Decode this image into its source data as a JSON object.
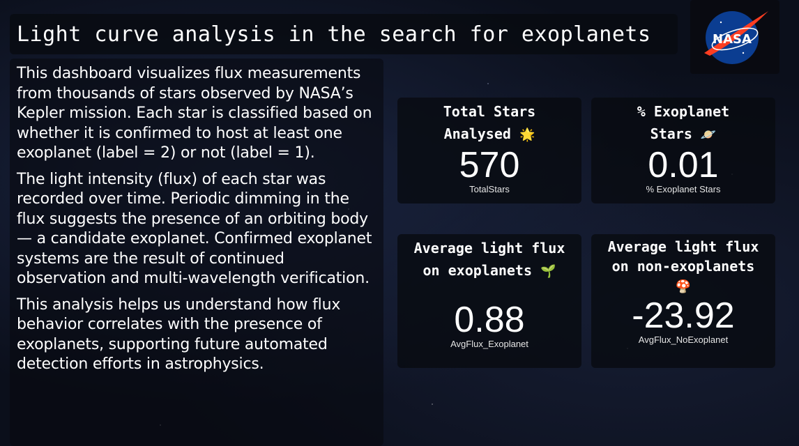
{
  "title": "Light curve analysis in the search for exoplanets",
  "logo": {
    "text": "NASA",
    "colors": {
      "blue": "#0b3d91",
      "red": "#fc3d21"
    }
  },
  "description": [
    "This dashboard visualizes flux measurements from thousands of stars observed by NASA’s Kepler mission. Each star is classified based on whether it is confirmed to host at least one exoplanet (label = 2) or not (label = 1).",
    "The light intensity (flux) of each star was recorded over time. Periodic dimming in the flux suggests the presence of an orbiting body — a candidate exoplanet. Confirmed exoplanet systems are the result of continued observation and multi-wavelength verification.",
    "This analysis helps us understand how flux behavior correlates with the presence of exoplanets, supporting future automated detection efforts in astrophysics."
  ],
  "cards": {
    "total_stars": {
      "title_line1": "Total Stars",
      "title_line2": "Analysed",
      "emoji": "🌟",
      "value": "570",
      "sub": "TotalStars"
    },
    "pct_exoplanet": {
      "title_line1": "% Exoplanet",
      "title_line2": "Stars",
      "emoji": "🪐",
      "value": "0.01",
      "sub": "% Exoplanet Stars"
    },
    "avg_flux_exo": {
      "title_line1": "Average light flux",
      "title_line2": "on exoplanets",
      "emoji": "🌱",
      "value": "0.88",
      "sub": "AvgFlux_Exoplanet"
    },
    "avg_flux_noexo": {
      "title_line1": "Average light flux",
      "title_line2": "on non-exoplanets",
      "emoji": "🍄",
      "value": "-23.92",
      "sub": "AvgFlux_NoExoplanet"
    }
  }
}
